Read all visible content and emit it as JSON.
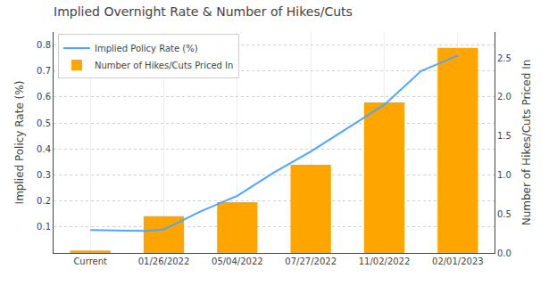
{
  "chart_data": {
    "type": "bar",
    "title": "Implied Overnight Rate & Number of Hikes/Cuts",
    "ylabel": "Implied Policy Rate (%)",
    "y2label": "Number of Hikes/Cuts Priced In",
    "categories": [
      "Current",
      "01/26/2022",
      "05/04/2022",
      "07/27/2022",
      "11/02/2022",
      "02/01/2023"
    ],
    "xlim": [
      -0.5,
      5.5
    ],
    "series": [
      {
        "name": "Implied Policy Rate (%)",
        "type": "line",
        "color": "#4da6ff",
        "x": [
          0,
          0.25,
          0.5,
          0.75,
          1.0,
          1.5,
          2.0,
          2.5,
          3.0,
          3.5,
          4.0,
          4.5,
          5.0
        ],
        "values": [
          0.088,
          0.088,
          0.086,
          0.085,
          0.09,
          0.16,
          0.22,
          0.31,
          0.39,
          0.48,
          0.57,
          0.7,
          0.76
        ]
      },
      {
        "name": "Number of Hikes/Cuts Priced In",
        "type": "bar",
        "color": "#FFA500",
        "axis": "y2",
        "values": [
          0.03,
          0.47,
          0.65,
          1.13,
          1.93,
          2.63
        ]
      }
    ],
    "ylim": [
      0.0,
      0.85
    ],
    "yticks": [
      0.1,
      0.2,
      0.3,
      0.4,
      0.5,
      0.6,
      0.7,
      0.8
    ],
    "y2lim": [
      0.0,
      2.833
    ],
    "y2ticks": [
      {
        "value": 0.0,
        "label": "0.0"
      },
      0.5,
      {
        "value": 1.0,
        "label": "1.0"
      },
      1.5,
      {
        "value": 2.0,
        "label": "2.0"
      },
      2.5
    ],
    "grid": true,
    "legend": "upper left"
  }
}
